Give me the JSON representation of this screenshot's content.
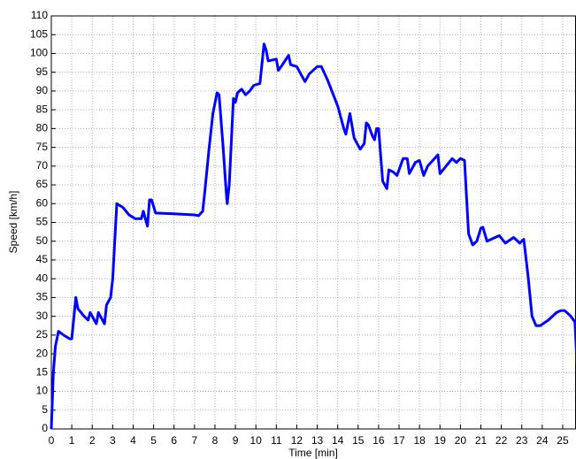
{
  "chart_data": {
    "type": "line",
    "x_label": "Time [min]",
    "y_label": "Speed [km/h]",
    "x": [
      0,
      0.1,
      0.2,
      0.35,
      0.6,
      0.9,
      1.0,
      1.2,
      1.3,
      1.6,
      1.8,
      1.9,
      2.1,
      2.2,
      2.3,
      2.5,
      2.6,
      2.7,
      2.9,
      3.0,
      3.1,
      3.2,
      3.5,
      3.8,
      4.1,
      4.4,
      4.5,
      4.6,
      4.7,
      4.8,
      4.9,
      5.1,
      6,
      7,
      7.2,
      7.4,
      7.5,
      7.7,
      7.9,
      8.1,
      8.2,
      8.4,
      8.55,
      8.6,
      8.7,
      8.9,
      9.0,
      9.1,
      9.3,
      9.5,
      9.7,
      9.9,
      10.2,
      10.4,
      10.5,
      10.6,
      11.0,
      11.1,
      11.3,
      11.6,
      11.7,
      12.0,
      12.4,
      12.6,
      13.0,
      13.2,
      13.5,
      14.0,
      14.3,
      14.4,
      14.6,
      14.8,
      15.1,
      15.3,
      15.4,
      15.5,
      15.7,
      15.8,
      15.9,
      16.0,
      16.2,
      16.4,
      16.5,
      16.7,
      16.9,
      17.2,
      17.4,
      17.5,
      17.8,
      18.0,
      18.2,
      18.4,
      18.9,
      19.0,
      19.3,
      19.6,
      19.8,
      20.0,
      20.2,
      20.4,
      20.6,
      20.8,
      21.0,
      21.1,
      21.3,
      21.9,
      22.2,
      22.6,
      22.9,
      23.1,
      23.3,
      23.5,
      23.7,
      23.9,
      24.3,
      24.7,
      24.9,
      25.1,
      25.4,
      25.6,
      25.7
    ],
    "values": [
      0,
      15,
      22,
      26,
      25,
      24,
      24,
      35,
      32,
      30,
      29,
      31,
      29,
      28,
      31,
      29,
      28,
      33,
      35,
      40,
      50,
      60,
      59,
      57,
      56,
      56,
      58,
      56,
      54,
      61,
      61,
      57.5,
      57.3,
      57,
      56.8,
      58,
      63,
      74,
      84,
      89.5,
      89,
      75,
      63,
      60,
      65,
      88,
      87,
      89.5,
      90.5,
      89,
      90,
      91.5,
      92,
      102.5,
      101,
      98,
      98.5,
      95.5,
      97,
      99.5,
      97,
      96.5,
      92.5,
      94.5,
      96.5,
      96.5,
      93,
      86,
      80,
      78.5,
      84,
      77.5,
      74.5,
      76,
      81.5,
      81,
      78,
      77,
      80,
      80,
      66,
      64,
      69,
      68.5,
      67.5,
      72,
      72,
      68,
      71,
      71.5,
      67.5,
      70,
      73,
      68,
      70,
      72,
      71,
      72,
      71.5,
      52,
      49,
      50,
      53.5,
      53.7,
      50,
      51.5,
      49.5,
      51,
      49.5,
      50.5,
      41,
      30,
      27.5,
      27.5,
      29,
      31,
      31.5,
      31.5,
      30,
      28.5,
      17
    ],
    "color": "#0000ff",
    "xlim": [
      0,
      25.65
    ],
    "ylim": [
      0,
      110
    ],
    "xticks": [
      0,
      1,
      2,
      3,
      4,
      5,
      6,
      7,
      8,
      9,
      10,
      11,
      12,
      13,
      14,
      15,
      16,
      17,
      18,
      19,
      20,
      21,
      22,
      23,
      24,
      25
    ],
    "yticks": [
      0,
      5,
      10,
      15,
      20,
      25,
      30,
      35,
      40,
      45,
      50,
      55,
      60,
      65,
      70,
      75,
      80,
      85,
      90,
      95,
      100,
      105,
      110
    ],
    "grid": true
  }
}
